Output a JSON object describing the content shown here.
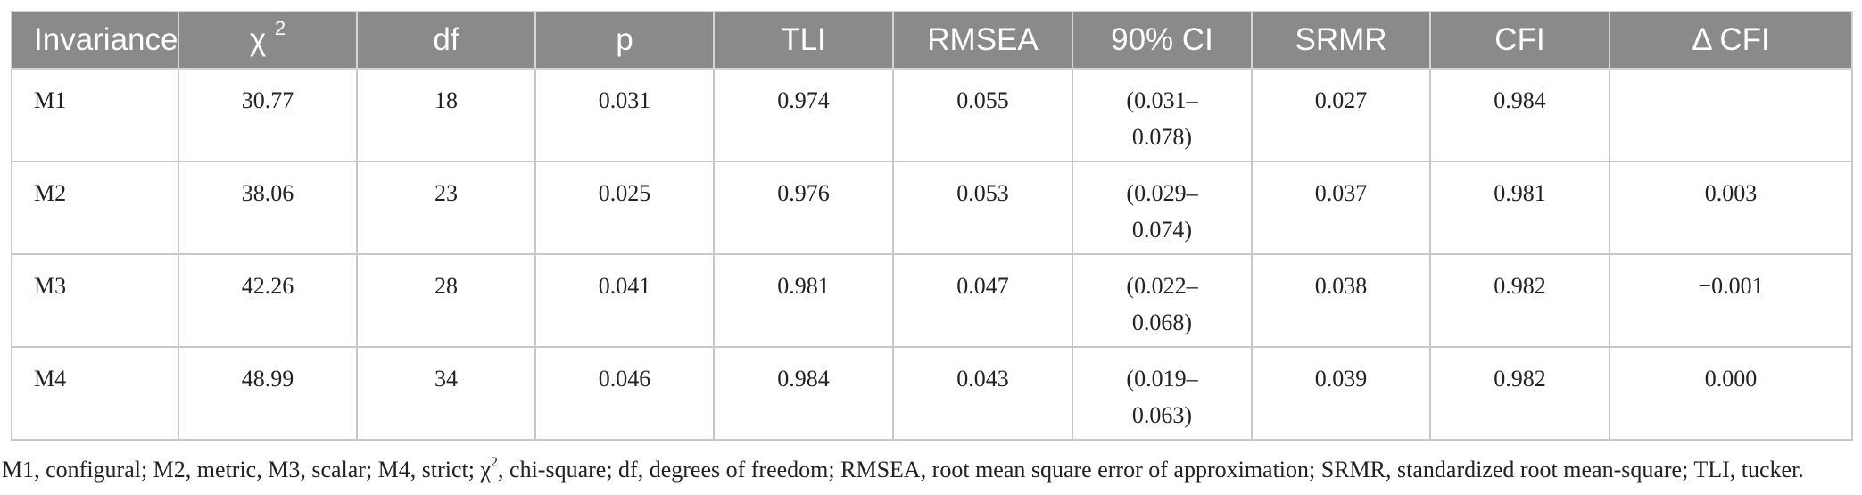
{
  "table": {
    "headers": [
      {
        "label": "Invariance",
        "sup": ""
      },
      {
        "label": "χ ",
        "sup": "2"
      },
      {
        "label": "df",
        "sup": ""
      },
      {
        "label": "p",
        "sup": ""
      },
      {
        "label": "TLI",
        "sup": ""
      },
      {
        "label": "RMSEA",
        "sup": ""
      },
      {
        "label": "90% CI",
        "sup": ""
      },
      {
        "label": "SRMR",
        "sup": ""
      },
      {
        "label": "CFI",
        "sup": ""
      },
      {
        "label": "Δ CFI",
        "sup": ""
      }
    ],
    "rows": [
      {
        "model": "M1",
        "chi2": "30.77",
        "df": "18",
        "p": "0.031",
        "tli": "0.974",
        "rmsea": "0.055",
        "ci_low": "(0.031–",
        "ci_high": "0.078)",
        "srmr": "0.027",
        "cfi": "0.984",
        "delta_cfi": ""
      },
      {
        "model": "M2",
        "chi2": "38.06",
        "df": "23",
        "p": "0.025",
        "tli": "0.976",
        "rmsea": "0.053",
        "ci_low": "(0.029–",
        "ci_high": "0.074)",
        "srmr": "0.037",
        "cfi": "0.981",
        "delta_cfi": "0.003"
      },
      {
        "model": "M3",
        "chi2": "42.26",
        "df": "28",
        "p": "0.041",
        "tli": "0.981",
        "rmsea": "0.047",
        "ci_low": "(0.022–",
        "ci_high": "0.068)",
        "srmr": "0.038",
        "cfi": "0.982",
        "delta_cfi": "−0.001"
      },
      {
        "model": "M4",
        "chi2": "48.99",
        "df": "34",
        "p": "0.046",
        "tli": "0.984",
        "rmsea": "0.043",
        "ci_low": "(0.019–",
        "ci_high": "0.063)",
        "srmr": "0.039",
        "cfi": "0.982",
        "delta_cfi": "0.000"
      }
    ]
  },
  "footnote": {
    "before": "M1, configural; M2, metric, M3, scalar; M4, strict; χ",
    "sup": "2",
    "after": ", chi-square; df, degrees of freedom; RMSEA, root mean square error of approximation; SRMR, standardized root mean-square; TLI, tucker."
  },
  "colors": {
    "header_background": "#8a8a8a",
    "header_text": "#ffffff",
    "grid_lines": "#c8c8c8",
    "body_text": "#222222"
  }
}
